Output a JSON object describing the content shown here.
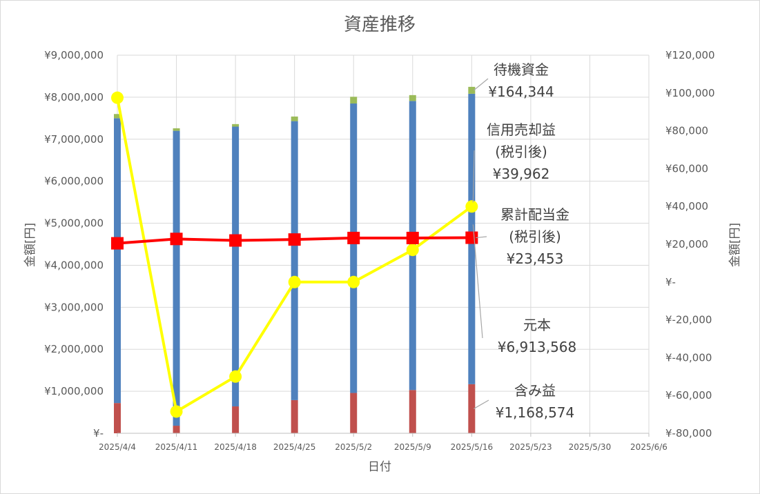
{
  "chart_data": {
    "type": "bar",
    "title": "資産推移",
    "xlabel": "日付",
    "ylabel_left": "金額[円]",
    "ylabel_right": "金額[円]",
    "categories": [
      "2025/4/4",
      "2025/4/11",
      "2025/4/18",
      "2025/4/25",
      "2025/5/2",
      "2025/5/9",
      "2025/5/16",
      "2025/5/23",
      "2025/5/30",
      "2025/6/6"
    ],
    "ylim_left": [
      0,
      9000000
    ],
    "ylim_right": [
      -80000,
      120000
    ],
    "yticks_left": [
      "¥-",
      "¥1,000,000",
      "¥2,000,000",
      "¥3,000,000",
      "¥4,000,000",
      "¥5,000,000",
      "¥6,000,000",
      "¥7,000,000",
      "¥8,000,000",
      "¥9,000,000"
    ],
    "yticks_right": [
      "¥-80,000",
      "¥-60,000",
      "¥-40,000",
      "¥-20,000",
      "¥-",
      "¥20,000",
      "¥40,000",
      "¥60,000",
      "¥80,000",
      "¥100,000",
      "¥120,000"
    ],
    "grid": true,
    "stacked_series": [
      {
        "name": "含み益",
        "axis": "left",
        "color": "#C0504D",
        "values": [
          720000,
          180000,
          640000,
          790000,
          960000,
          1030000,
          1168574,
          null,
          null,
          null
        ]
      },
      {
        "name": "元本",
        "axis": "left",
        "color": "#4F81BD",
        "values": [
          6780000,
          7020000,
          6660000,
          6640000,
          6890000,
          6880000,
          6913568,
          null,
          null,
          null
        ]
      },
      {
        "name": "待機資金",
        "axis": "left",
        "color": "#9BBB59",
        "values": [
          100000,
          60000,
          60000,
          110000,
          160000,
          140000,
          164344,
          null,
          null,
          null
        ]
      }
    ],
    "line_series": [
      {
        "name": "信用売却益(税引後)",
        "axis": "right",
        "color": "#FFFF00",
        "marker": "circle",
        "values": [
          97500,
          -68500,
          -50000,
          0,
          0,
          17000,
          39962,
          null,
          null,
          null
        ]
      },
      {
        "name": "累計配当金(税引後)",
        "axis": "right",
        "color": "#FF0000",
        "marker": "square",
        "values": [
          20500,
          22800,
          22000,
          22500,
          23300,
          23300,
          23453,
          null,
          null,
          null
        ]
      }
    ],
    "annotations": [
      {
        "lines": [
          "待機資金",
          "¥164,344"
        ]
      },
      {
        "lines": [
          "信用売却益",
          "(税引後)",
          "¥39,962"
        ]
      },
      {
        "lines": [
          "累計配当金",
          "(税引後)",
          "¥23,453"
        ]
      },
      {
        "lines": [
          "元本",
          "¥6,913,568"
        ]
      },
      {
        "lines": [
          "含み益",
          "¥1,168,574"
        ]
      }
    ]
  }
}
